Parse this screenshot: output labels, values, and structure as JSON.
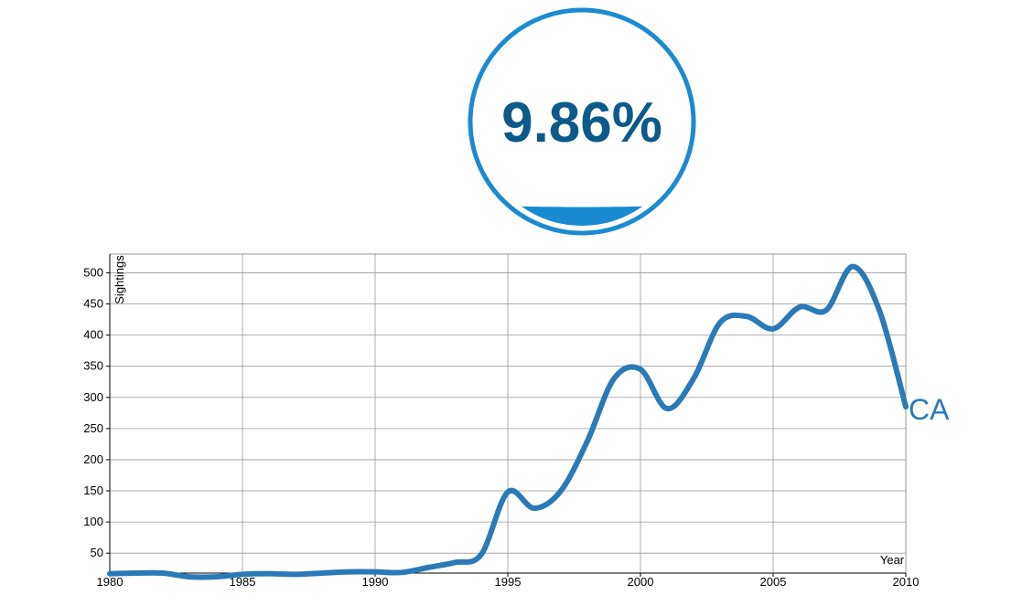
{
  "header": {
    "title": ""
  },
  "gauge": {
    "value_label": "9.86%",
    "fill_fraction": 0.0986,
    "ring_color": "#1a8bd0",
    "text_color": "#0b5a8a",
    "fill_color": "#1a8bd0"
  },
  "chart_data": {
    "type": "line",
    "xlabel": "Year",
    "ylabel": "Sightings",
    "xlim": [
      1980,
      2010
    ],
    "ylim": [
      18,
      530
    ],
    "x_ticks": [
      1980,
      1985,
      1990,
      1995,
      2000,
      2005,
      2010
    ],
    "y_ticks": [
      50,
      100,
      150,
      200,
      250,
      300,
      350,
      400,
      450,
      500
    ],
    "grid": true,
    "line_color": "#2a7ab8",
    "series": [
      {
        "name": "CA",
        "x": [
          1980,
          1981,
          1982,
          1983,
          1984,
          1985,
          1986,
          1987,
          1988,
          1989,
          1990,
          1991,
          1992,
          1993,
          1994,
          1995,
          1996,
          1997,
          1998,
          1999,
          2000,
          2001,
          2002,
          2003,
          2004,
          2005,
          2006,
          2007,
          2008,
          2009,
          2010
        ],
        "values": [
          17,
          18,
          18,
          12,
          12,
          16,
          17,
          16,
          18,
          20,
          20,
          19,
          27,
          35,
          48,
          148,
          122,
          150,
          230,
          330,
          345,
          282,
          330,
          420,
          430,
          410,
          445,
          440,
          510,
          440,
          285
        ]
      }
    ]
  }
}
